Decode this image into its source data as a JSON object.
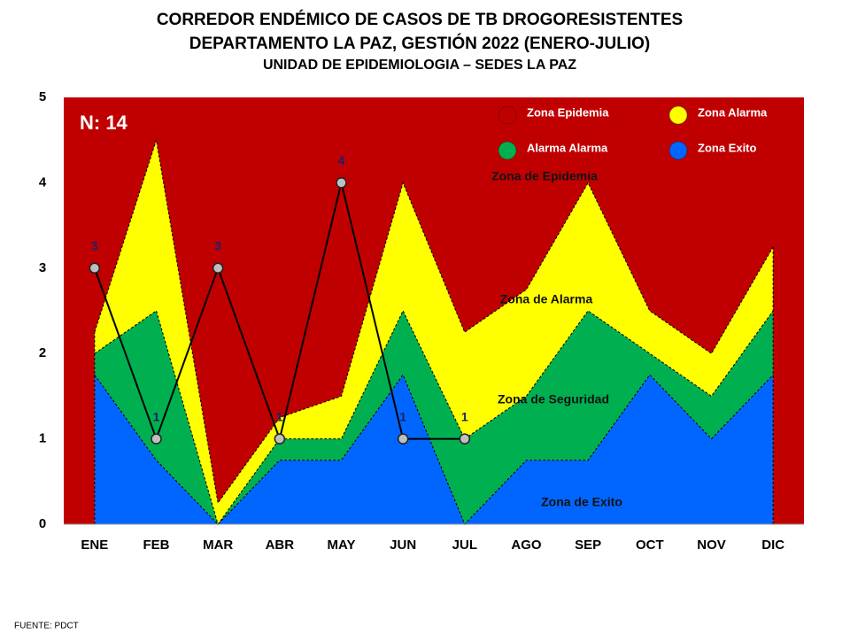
{
  "chart_data": {
    "type": "stacked_area_line",
    "title": [
      "CORREDOR ENDÉMICO DE CASOS DE TB DROGORESISTENTES",
      "DEPARTAMENTO  LA PAZ, GESTIÓN 2022 (ENERO-JULIO)",
      "UNIDAD DE EPIDEMIOLOGIA – SEDES LA PAZ"
    ],
    "note": "N: 14",
    "source": "FUENTE:   PDCT",
    "categories": [
      "ENE",
      "FEB",
      "MAR",
      "ABR",
      "MAY",
      "JUN",
      "JUL",
      "AGO",
      "SEP",
      "OCT",
      "NOV",
      "DIC"
    ],
    "series": [
      {
        "name": "Zona Exito",
        "color": "#0066ff",
        "values": [
          1.75,
          0.75,
          0,
          0.75,
          0.75,
          1.75,
          0,
          0.75,
          0.75,
          1.75,
          1,
          1.75
        ]
      },
      {
        "name": "Alarma  Alarma",
        "color": "#00b050",
        "values": [
          0.25,
          1.75,
          0,
          0.25,
          0.25,
          0.75,
          1,
          0.75,
          1.75,
          0.25,
          0.5,
          0.75
        ]
      },
      {
        "name": "Zona  Alarma",
        "color": "#ffff00",
        "values": [
          0.25,
          2,
          0.25,
          0.25,
          0.5,
          1.5,
          1.25,
          1.25,
          1.5,
          0.5,
          0.5,
          0.75
        ]
      },
      {
        "name": "Zona Epidemia",
        "color": "#c00000",
        "values": [
          2.75,
          0.5,
          4.75,
          3.75,
          3.5,
          1,
          2.75,
          2.25,
          1,
          2.5,
          3,
          1.75
        ]
      }
    ],
    "cases": {
      "color": "#000000",
      "marker_color": "#bfbfbf",
      "label_color": "#1f1f6b",
      "values": [
        3,
        1,
        3,
        1,
        4,
        1,
        1,
        null,
        null,
        null,
        null,
        null
      ]
    },
    "annotations": [
      "Zona de Epidemia",
      "Zona de Alarma",
      "Zona de Seguridad",
      "Zona de Exito"
    ],
    "ylim": [
      0,
      5
    ],
    "yticks": [
      0,
      1,
      2,
      3,
      4,
      5
    ],
    "grid": false
  }
}
